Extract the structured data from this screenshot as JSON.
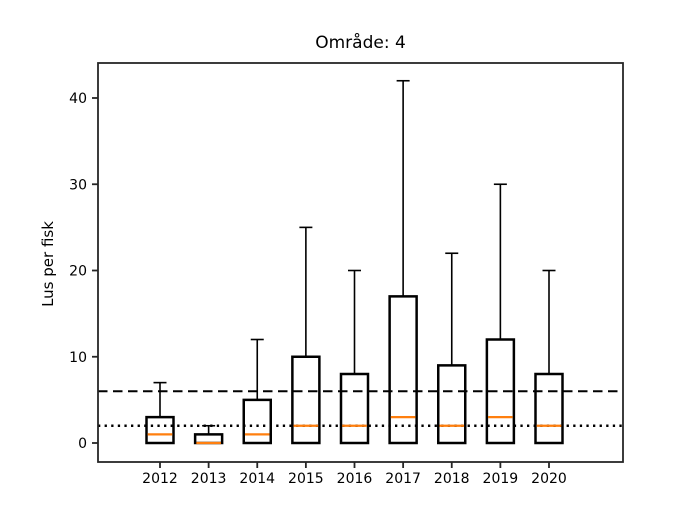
{
  "figure": {
    "background": "#ffffff"
  },
  "chart_data": {
    "type": "boxplot",
    "title": "Område: 4",
    "xlabel": "",
    "ylabel": "Lus per fisk",
    "categories": [
      "2012",
      "2013",
      "2014",
      "2015",
      "2016",
      "2017",
      "2018",
      "2019",
      "2020"
    ],
    "yticks": [
      0,
      10,
      20,
      30,
      40
    ],
    "ylim": [
      -2.2,
      44.1
    ],
    "grid": false,
    "legend": null,
    "series": [
      {
        "category": "2012",
        "whisker_low": 0,
        "q1": 0,
        "median": 1,
        "q3": 3,
        "whisker_high": 7
      },
      {
        "category": "2013",
        "whisker_low": 0,
        "q1": 0,
        "median": 0,
        "q3": 1,
        "whisker_high": 2
      },
      {
        "category": "2014",
        "whisker_low": 0,
        "q1": 0,
        "median": 1,
        "q3": 5,
        "whisker_high": 12
      },
      {
        "category": "2015",
        "whisker_low": 0,
        "q1": 0,
        "median": 2,
        "q3": 10,
        "whisker_high": 25
      },
      {
        "category": "2016",
        "whisker_low": 0,
        "q1": 0,
        "median": 2,
        "q3": 8,
        "whisker_high": 20
      },
      {
        "category": "2017",
        "whisker_low": 0,
        "q1": 0,
        "median": 3,
        "q3": 17,
        "whisker_high": 42
      },
      {
        "category": "2018",
        "whisker_low": 0,
        "q1": 0,
        "median": 2,
        "q3": 9,
        "whisker_high": 22
      },
      {
        "category": "2019",
        "whisker_low": 0,
        "q1": 0,
        "median": 3,
        "q3": 12,
        "whisker_high": 30
      },
      {
        "category": "2020",
        "whisker_low": 0,
        "q1": 0,
        "median": 2,
        "q3": 8,
        "whisker_high": 20
      }
    ],
    "reference_lines": [
      {
        "value": 6,
        "style": "dashed",
        "color": "#000000"
      },
      {
        "value": 2,
        "style": "dotted",
        "color": "#000000"
      }
    ],
    "colors": {
      "box_edge": "#000000",
      "whisker": "#000000",
      "median": "#ff7f0e",
      "spine": "#262626",
      "tick_label": "#000000"
    }
  }
}
